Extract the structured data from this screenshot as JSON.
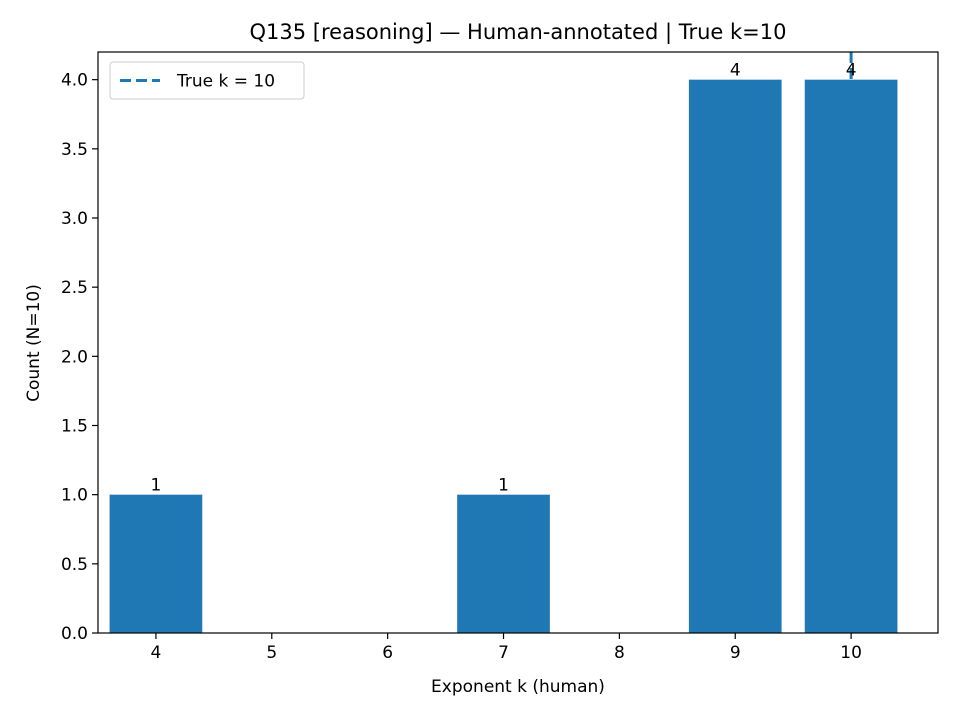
{
  "chart_data": {
    "type": "bar",
    "title": "Q135 [reasoning] — Human-annotated | True k=10",
    "xlabel": "Exponent k (human)",
    "ylabel": "Count (N=10)",
    "x_ticks": [
      4,
      5,
      6,
      7,
      8,
      9,
      10
    ],
    "xlim": [
      3.5,
      10.75
    ],
    "ylim": [
      0,
      4.2
    ],
    "y_ticks": [
      "0.0",
      "0.5",
      "1.0",
      "1.5",
      "2.0",
      "2.5",
      "3.0",
      "3.5",
      "4.0"
    ],
    "bars": [
      {
        "x": 4,
        "value": 1,
        "label": "1"
      },
      {
        "x": 7,
        "value": 1,
        "label": "1"
      },
      {
        "x": 9,
        "value": 4,
        "label": "4"
      },
      {
        "x": 10,
        "value": 4,
        "label": "4"
      }
    ],
    "bar_color": "#1f77b4",
    "reference_line": {
      "x": 10,
      "style": "dashed",
      "color": "#1f77b4"
    },
    "legend": {
      "position": "top-left",
      "entries": [
        "True k = 10"
      ]
    },
    "grid": false
  }
}
